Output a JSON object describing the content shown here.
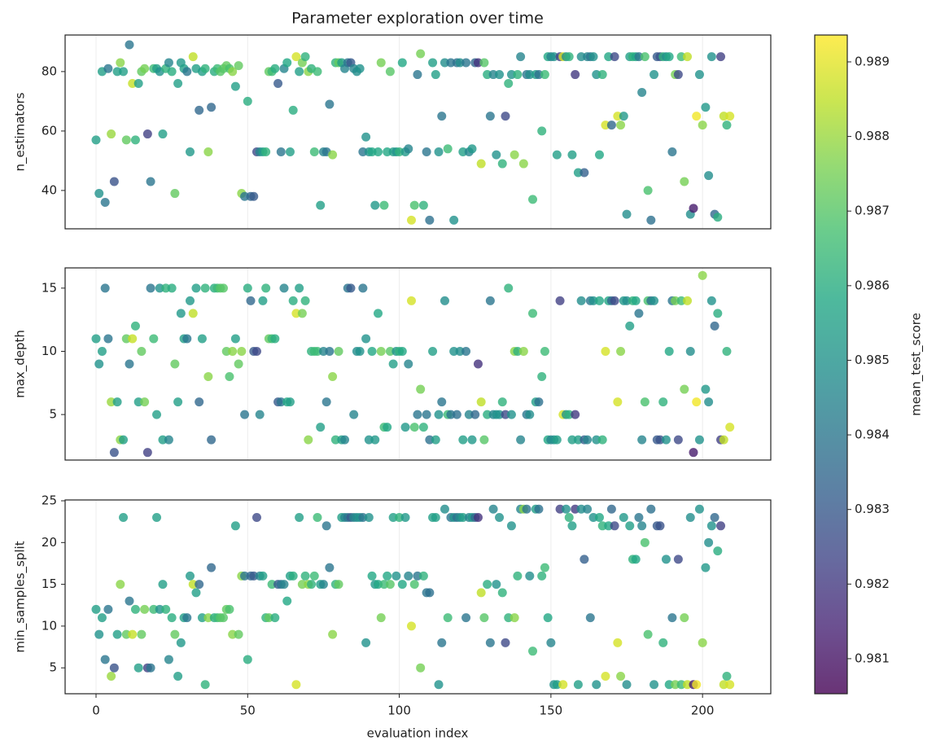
{
  "chart_data": {
    "type": "scatter",
    "title": "Parameter exploration over time",
    "xlabel": "evaluation index",
    "xlim": [
      -10.2,
      222.5
    ],
    "xticks": [
      0,
      50,
      100,
      150,
      200
    ],
    "grid": true,
    "x": [
      0,
      1,
      2,
      3,
      4,
      5,
      6,
      7,
      8,
      9,
      10,
      11,
      12,
      13,
      14,
      15,
      16,
      17,
      18,
      19,
      20,
      21,
      22,
      23,
      24,
      25,
      26,
      27,
      28,
      29,
      30,
      31,
      32,
      33,
      34,
      35,
      36,
      37,
      38,
      39,
      40,
      41,
      42,
      43,
      44,
      45,
      46,
      47,
      48,
      49,
      50,
      51,
      52,
      53,
      54,
      55,
      56,
      57,
      58,
      59,
      60,
      61,
      62,
      63,
      64,
      65,
      66,
      67,
      68,
      69,
      70,
      71,
      72,
      73,
      74,
      75,
      76,
      77,
      78,
      79,
      80,
      81,
      82,
      83,
      84,
      85,
      86,
      87,
      88,
      89,
      90,
      91,
      92,
      93,
      94,
      95,
      96,
      97,
      98,
      99,
      100,
      101,
      102,
      103,
      104,
      105,
      106,
      107,
      108,
      109,
      110,
      111,
      112,
      113,
      114,
      115,
      116,
      117,
      118,
      119,
      120,
      121,
      122,
      123,
      124,
      125,
      126,
      127,
      128,
      129,
      130,
      131,
      132,
      133,
      134,
      135,
      136,
      137,
      138,
      139,
      140,
      141,
      142,
      143,
      144,
      145,
      146,
      147,
      148,
      149,
      150,
      151,
      152,
      153,
      154,
      155,
      156,
      157,
      158,
      159,
      160,
      161,
      162,
      163,
      164,
      165,
      166,
      167,
      168,
      169,
      170,
      171,
      172,
      173,
      174,
      175,
      176,
      177,
      178,
      179,
      180,
      181,
      182,
      183,
      184,
      185,
      186,
      187,
      188,
      189,
      190,
      191,
      192,
      193,
      194,
      195,
      196,
      197,
      198,
      199,
      200,
      201,
      202,
      203,
      204,
      205,
      206,
      207,
      208,
      209
    ],
    "panels": [
      {
        "ylabel": "n_estimators",
        "ylim": [
          27.1,
          92.3
        ],
        "yticks": [
          40,
          60,
          80
        ],
        "values": [
          57,
          39,
          80,
          36,
          81,
          59,
          43,
          80,
          83,
          80,
          57,
          89,
          76,
          57,
          76,
          80,
          81,
          59,
          43,
          81,
          81,
          80,
          59,
          81,
          83,
          80,
          39,
          76,
          83,
          81,
          80,
          53,
          85,
          81,
          67,
          80,
          81,
          53,
          68,
          80,
          81,
          80,
          81,
          82,
          81,
          80,
          75,
          82,
          39,
          38,
          70,
          38,
          38,
          53,
          53,
          53,
          53,
          80,
          80,
          81,
          76,
          53,
          81,
          83,
          53,
          67,
          85,
          80,
          83,
          85,
          80,
          81,
          53,
          80,
          35,
          53,
          53,
          69,
          52,
          83,
          83,
          83,
          81,
          83,
          83,
          81,
          80,
          81,
          53,
          58,
          53,
          53,
          35,
          53,
          83,
          35,
          53,
          80,
          53,
          53,
          53,
          83,
          53,
          54,
          30,
          35,
          79,
          86,
          35,
          53,
          30,
          83,
          79,
          53,
          65,
          83,
          54,
          83,
          30,
          83,
          83,
          53,
          83,
          53,
          54,
          83,
          83,
          49,
          83,
          79,
          65,
          79,
          52,
          79,
          49,
          65,
          76,
          79,
          52,
          79,
          85,
          49,
          79,
          79,
          37,
          79,
          79,
          60,
          79,
          85,
          85,
          85,
          52,
          85,
          85,
          85,
          85,
          52,
          79,
          46,
          85,
          46,
          85,
          85,
          85,
          79,
          52,
          79,
          62,
          85,
          62,
          85,
          65,
          62,
          65,
          32,
          85,
          85,
          85,
          85,
          73,
          85,
          40,
          30,
          79,
          85,
          85,
          85,
          85,
          85,
          53,
          79,
          79,
          85,
          43,
          85,
          32,
          34,
          65,
          79,
          62,
          68,
          45,
          85,
          32,
          31,
          85,
          65,
          62,
          65
        ]
      },
      {
        "ylabel": "max_depth",
        "ylim": [
          1.4,
          16.6
        ],
        "yticks": [
          5,
          10,
          15
        ],
        "values": [
          11,
          9,
          10,
          15,
          11,
          6,
          2,
          6,
          3,
          3,
          11,
          9,
          11,
          12,
          6,
          10,
          6,
          2,
          15,
          11,
          5,
          15,
          3,
          15,
          3,
          15,
          9,
          6,
          13,
          11,
          11,
          14,
          13,
          15,
          6,
          11,
          15,
          8,
          3,
          15,
          15,
          15,
          15,
          10,
          8,
          10,
          11,
          9,
          10,
          5,
          15,
          14,
          10,
          10,
          5,
          14,
          15,
          11,
          11,
          11,
          6,
          6,
          15,
          6,
          6,
          14,
          13,
          15,
          13,
          14,
          3,
          10,
          10,
          10,
          4,
          10,
          6,
          10,
          8,
          3,
          10,
          3,
          3,
          15,
          15,
          5,
          10,
          10,
          15,
          11,
          3,
          10,
          3,
          13,
          10,
          4,
          4,
          10,
          9,
          10,
          10,
          10,
          4,
          9,
          14,
          4,
          5,
          7,
          4,
          5,
          3,
          10,
          3,
          5,
          6,
          14,
          5,
          5,
          10,
          5,
          10,
          3,
          10,
          5,
          3,
          5,
          9,
          6,
          3,
          5,
          14,
          5,
          5,
          5,
          6,
          5,
          15,
          5,
          10,
          10,
          3,
          10,
          5,
          5,
          13,
          6,
          6,
          8,
          10,
          3,
          3,
          3,
          3,
          14,
          5,
          5,
          5,
          3,
          5,
          3,
          14,
          3,
          3,
          14,
          14,
          3,
          14,
          3,
          10,
          14,
          14,
          14,
          6,
          10,
          14,
          14,
          12,
          14,
          14,
          13,
          3,
          6,
          14,
          14,
          14,
          3,
          3,
          6,
          3,
          10,
          14,
          14,
          3,
          14,
          7,
          14,
          10,
          2,
          6,
          3,
          16,
          7,
          6,
          14,
          12,
          13,
          3,
          3,
          10,
          4
        ]
      },
      {
        "ylabel": "min_samples_split",
        "ylim": [
          1.9,
          25.1
        ],
        "yticks": [
          5,
          10,
          15,
          20,
          25
        ],
        "values": [
          12,
          9,
          11,
          6,
          12,
          4,
          5,
          9,
          15,
          23,
          9,
          13,
          9,
          12,
          5,
          9,
          12,
          5,
          5,
          12,
          23,
          12,
          15,
          12,
          6,
          11,
          9,
          4,
          8,
          11,
          11,
          16,
          15,
          14,
          15,
          11,
          3,
          11,
          17,
          11,
          11,
          11,
          11,
          12,
          12,
          9,
          22,
          9,
          16,
          16,
          6,
          16,
          16,
          23,
          16,
          16,
          11,
          11,
          15,
          11,
          15,
          15,
          15,
          13,
          16,
          16,
          3,
          23,
          15,
          16,
          15,
          15,
          16,
          23,
          15,
          15,
          22,
          17,
          9,
          15,
          15,
          23,
          23,
          23,
          23,
          23,
          23,
          23,
          23,
          8,
          23,
          16,
          15,
          15,
          11,
          15,
          16,
          15,
          23,
          16,
          23,
          15,
          23,
          16,
          10,
          15,
          16,
          5,
          16,
          14,
          14,
          23,
          23,
          3,
          8,
          24,
          11,
          23,
          23,
          23,
          23,
          23,
          11,
          23,
          23,
          23,
          23,
          14,
          11,
          15,
          8,
          24,
          15,
          23,
          14,
          8,
          11,
          22,
          11,
          16,
          24,
          24,
          24,
          16,
          7,
          24,
          24,
          16,
          17,
          11,
          8,
          3,
          3,
          24,
          3,
          24,
          23,
          22,
          24,
          3,
          24,
          18,
          24,
          11,
          23,
          3,
          23,
          22,
          4,
          22,
          24,
          22,
          8,
          4,
          23,
          3,
          22,
          18,
          18,
          23,
          22,
          20,
          9,
          24,
          3,
          22,
          22,
          8,
          18,
          3,
          11,
          3,
          18,
          3,
          11,
          3,
          23,
          3,
          3,
          24,
          8,
          17,
          20,
          22,
          23,
          19,
          22,
          3,
          4,
          3
        ]
      }
    ],
    "colorbar": {
      "label": "mean_test_score",
      "colormap": "viridis",
      "clim": [
        0.98053,
        0.98936
      ],
      "ticks": [
        0.981,
        0.982,
        0.983,
        0.984,
        0.985,
        0.986,
        0.987,
        0.988,
        0.989
      ],
      "values": [
        0.9855,
        0.985,
        0.9855,
        0.984,
        0.984,
        0.988,
        0.9828,
        0.9855,
        0.9878,
        0.9855,
        0.9872,
        0.984,
        0.9886,
        0.9862,
        0.9855,
        0.9872,
        0.9875,
        0.9822,
        0.984,
        0.9865,
        0.9855,
        0.985,
        0.9855,
        0.9862,
        0.9845,
        0.986,
        0.9872,
        0.9855,
        0.9852,
        0.9855,
        0.984,
        0.9852,
        0.9885,
        0.9855,
        0.9835,
        0.9855,
        0.9862,
        0.9878,
        0.9835,
        0.986,
        0.9865,
        0.987,
        0.987,
        0.9872,
        0.9868,
        0.9878,
        0.9855,
        0.9872,
        0.9878,
        0.984,
        0.986,
        0.9835,
        0.983,
        0.9825,
        0.9845,
        0.9855,
        0.9862,
        0.9872,
        0.9865,
        0.986,
        0.983,
        0.984,
        0.9845,
        0.9858,
        0.9855,
        0.986,
        0.9888,
        0.9855,
        0.9875,
        0.9862,
        0.9878,
        0.9862,
        0.9865,
        0.9865,
        0.9855,
        0.9845,
        0.984,
        0.984,
        0.9878,
        0.9862,
        0.9872,
        0.9855,
        0.9845,
        0.984,
        0.983,
        0.9845,
        0.9848,
        0.985,
        0.984,
        0.985,
        0.985,
        0.9858,
        0.9852,
        0.9858,
        0.9875,
        0.9865,
        0.9858,
        0.987,
        0.9855,
        0.985,
        0.9862,
        0.9858,
        0.9852,
        0.9845,
        0.9888,
        0.9868,
        0.984,
        0.9875,
        0.9862,
        0.984,
        0.9838,
        0.9855,
        0.9855,
        0.985,
        0.984,
        0.9848,
        0.9865,
        0.984,
        0.985,
        0.9838,
        0.9848,
        0.9855,
        0.984,
        0.9845,
        0.9852,
        0.9835,
        0.9818,
        0.9885,
        0.987,
        0.986,
        0.984,
        0.9845,
        0.985,
        0.985,
        0.9862,
        0.9825,
        0.9862,
        0.985,
        0.9878,
        0.9862,
        0.9845,
        0.9878,
        0.984,
        0.9848,
        0.9865,
        0.9855,
        0.9838,
        0.9862,
        0.9865,
        0.9858,
        0.9845,
        0.985,
        0.9855,
        0.9822,
        0.9888,
        0.985,
        0.9862,
        0.9855,
        0.982,
        0.9855,
        0.9848,
        0.9832,
        0.9845,
        0.984,
        0.985,
        0.985,
        0.9858,
        0.9862,
        0.9888,
        0.9858,
        0.9835,
        0.9825,
        0.9888,
        0.9878,
        0.9852,
        0.9848,
        0.9855,
        0.9862,
        0.9858,
        0.984,
        0.9845,
        0.9868,
        0.9868,
        0.9838,
        0.985,
        0.983,
        0.9828,
        0.9862,
        0.985,
        0.9858,
        0.984,
        0.9875,
        0.9825,
        0.9865,
        0.9875,
        0.9885,
        0.9848,
        0.9812,
        0.9892,
        0.985,
        0.9878,
        0.9852,
        0.9848,
        0.985,
        0.9835,
        0.986,
        0.9822,
        0.9885,
        0.9862,
        0.9888
      ]
    }
  }
}
